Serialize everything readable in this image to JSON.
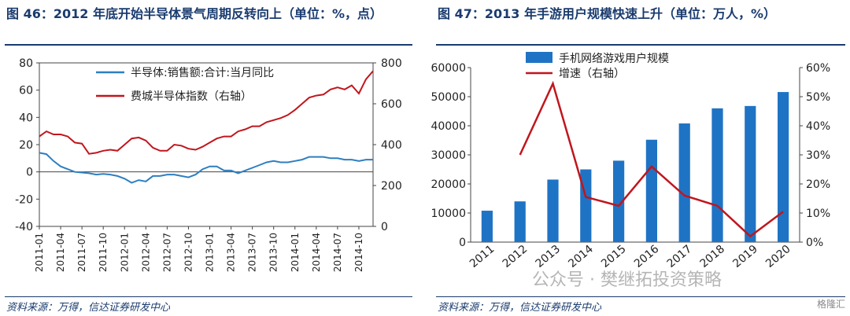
{
  "left": {
    "title": "图 46：2012 年底开始半导体景气周期反转向上（单位：%，点）",
    "source": "资料来源：万得，信达证券研发中心",
    "chart_data": {
      "type": "line",
      "x": [
        "2011-01",
        "2011-02",
        "2011-03",
        "2011-04",
        "2011-05",
        "2011-06",
        "2011-07",
        "2011-08",
        "2011-09",
        "2011-10",
        "2011-11",
        "2011-12",
        "2012-01",
        "2012-02",
        "2012-03",
        "2012-04",
        "2012-05",
        "2012-06",
        "2012-07",
        "2012-08",
        "2012-09",
        "2012-10",
        "2012-11",
        "2012-12",
        "2013-01",
        "2013-02",
        "2013-03",
        "2013-04",
        "2013-05",
        "2013-06",
        "2013-07",
        "2013-08",
        "2013-09",
        "2013-10",
        "2013-11",
        "2013-12",
        "2014-01",
        "2014-02",
        "2014-03",
        "2014-04",
        "2014-05",
        "2014-06",
        "2014-07",
        "2014-08",
        "2014-09",
        "2014-10",
        "2014-11",
        "2014-12"
      ],
      "xticks": [
        "2011-01",
        "2011-04",
        "2011-07",
        "2011-10",
        "2012-01",
        "2012-04",
        "2012-07",
        "2012-10",
        "2013-01",
        "2013-04",
        "2013-07",
        "2013-10",
        "2014-01",
        "2014-04",
        "2014-07",
        "2014-10"
      ],
      "yticks_left": [
        "80",
        "60",
        "40",
        "20",
        "0",
        "-20",
        "-40"
      ],
      "yticks_right": [
        "800",
        "600",
        "400",
        "200",
        "0"
      ],
      "ylim_left": [
        -40,
        80
      ],
      "ylim_right": [
        0,
        800
      ],
      "legend": "top",
      "series": [
        {
          "name": "半导体:销售额:合计:当月同比",
          "axis": "left",
          "color": "#2e7fc1",
          "values": [
            14,
            13,
            8,
            4,
            2,
            0,
            -0.5,
            -1,
            -2,
            -1.5,
            -2,
            -3,
            -5,
            -8,
            -6,
            -7,
            -3,
            -3,
            -2,
            -2,
            -3,
            -4,
            -2,
            2,
            4,
            4,
            1,
            1,
            -1,
            1,
            3,
            5,
            7,
            8,
            7,
            7,
            8,
            9,
            11,
            11,
            11,
            10,
            10,
            9,
            9,
            8,
            9,
            9
          ]
        },
        {
          "name": "费城半导体指数（右轴）",
          "axis": "right",
          "color": "#c0161d",
          "values": [
            440,
            465,
            450,
            450,
            440,
            410,
            405,
            355,
            360,
            370,
            375,
            370,
            400,
            430,
            435,
            420,
            385,
            370,
            370,
            400,
            395,
            380,
            375,
            390,
            410,
            430,
            440,
            440,
            465,
            475,
            490,
            490,
            510,
            520,
            530,
            545,
            570,
            600,
            630,
            640,
            645,
            670,
            680,
            670,
            690,
            650,
            720,
            760
          ]
        }
      ]
    }
  },
  "right": {
    "title": "图 47：2013 年手游用户规模快速上升（单位：万人，%）",
    "source": "资料来源：万得，信达证券研发中心",
    "watermark": "公众号 · 樊继拓投资策略",
    "badge": "格隆汇",
    "chart_data": {
      "type": "bar",
      "categories": [
        "2011",
        "2012",
        "2013",
        "2014",
        "2015",
        "2016",
        "2017",
        "2018",
        "2019",
        "2020"
      ],
      "yticks_left": [
        "60000",
        "50000",
        "40000",
        "30000",
        "20000",
        "10000",
        "0"
      ],
      "yticks_right": [
        "60%",
        "50%",
        "40%",
        "30%",
        "20%",
        "10%",
        "0%"
      ],
      "ylim_left": [
        0,
        60000
      ],
      "ylim_right": [
        0,
        60
      ],
      "legend": "top",
      "series": [
        {
          "name": "手机网络游戏用户规模",
          "kind": "bar",
          "axis": "left",
          "color": "#1f73c4",
          "values": [
            10800,
            14000,
            21500,
            25000,
            28000,
            35200,
            40800,
            46000,
            46800,
            51600
          ]
        },
        {
          "name": "增速（右轴）",
          "kind": "line",
          "axis": "right",
          "color": "#c0161d",
          "values": [
            null,
            30,
            54.5,
            15.5,
            12.5,
            26,
            16,
            12.5,
            2,
            10.5
          ]
        }
      ]
    }
  }
}
